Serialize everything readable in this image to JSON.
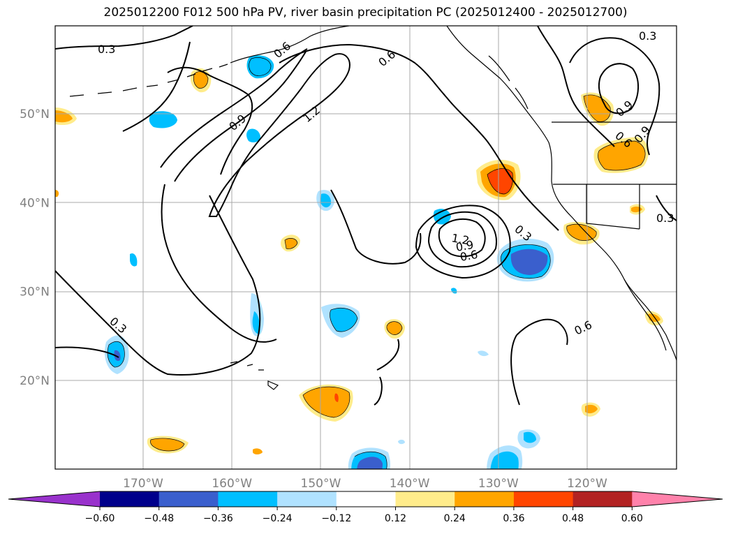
{
  "title": "2025012200 F012 500 hPa PV, river basin precipitation PC (2025012400 - 2025012700)",
  "map": {
    "lat_labels": [
      "50°N",
      "40°N",
      "30°N",
      "20°N"
    ],
    "lon_labels": [
      "170°W",
      "160°W",
      "150°W",
      "140°W",
      "130°W",
      "120°W"
    ],
    "lat_values": [
      50,
      40,
      30,
      20
    ],
    "lon_values": [
      -170,
      -160,
      -150,
      -140,
      -130,
      -120
    ],
    "contour_labels": [
      "0.3",
      "0.6",
      "0.9",
      "1.2"
    ]
  },
  "colorbar": {
    "ticks": [
      "−0.60",
      "−0.48",
      "−0.36",
      "−0.24",
      "−0.12",
      "0.12",
      "0.24",
      "0.36",
      "0.48",
      "0.60"
    ],
    "colors": [
      "#9932cc",
      "#00008b",
      "#3a5fcd",
      "#00bfff",
      "#b0e2ff",
      "#ffffff",
      "#ffec8b",
      "#ffa500",
      "#ff4500",
      "#b22222",
      "#ff82ab"
    ]
  }
}
